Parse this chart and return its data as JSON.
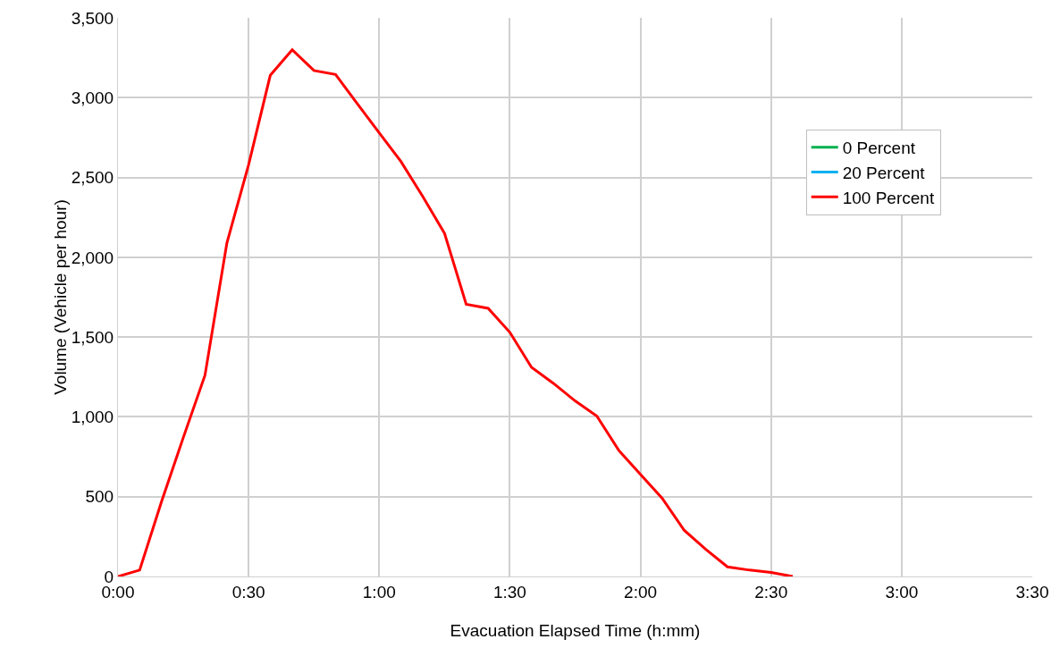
{
  "chart_data": {
    "type": "line",
    "xlabel": "Evacuation Elapsed Time (h:mm)",
    "ylabel": "Volume (Vehicle per hour)",
    "x": [
      0,
      0.083,
      0.167,
      0.25,
      0.333,
      0.417,
      0.5,
      0.583,
      0.667,
      0.75,
      0.833,
      0.917,
      1,
      1.083,
      1.167,
      1.25,
      1.333,
      1.417,
      1.5,
      1.583,
      1.667,
      1.75,
      1.833,
      1.917,
      2,
      2.083,
      2.167,
      2.25,
      2.333,
      2.417,
      2.5,
      2.583
    ],
    "series": [
      {
        "name": "0 Percent",
        "color": "#00b050",
        "values": [
          null,
          null,
          null,
          null,
          null,
          null,
          null,
          null,
          null,
          null,
          null,
          null,
          null,
          null,
          null,
          null,
          null,
          null,
          null,
          null,
          null,
          null,
          null,
          null,
          null,
          null,
          null,
          null,
          null,
          null,
          null,
          null
        ]
      },
      {
        "name": "20 Percent",
        "color": "#00b0f0",
        "values": [
          null,
          null,
          null,
          null,
          null,
          null,
          null,
          null,
          null,
          null,
          null,
          null,
          null,
          null,
          null,
          null,
          null,
          null,
          null,
          null,
          null,
          null,
          null,
          null,
          null,
          null,
          null,
          null,
          null,
          null,
          null,
          null
        ]
      },
      {
        "name": "100 Percent",
        "color": "#ff0000",
        "values": [
          0,
          40,
          470,
          870,
          1260,
          2090,
          2580,
          3140,
          3300,
          3170,
          3145,
          2960,
          2780,
          2600,
          2380,
          2150,
          1705,
          1680,
          1530,
          1310,
          1210,
          1100,
          1005,
          790,
          640,
          490,
          290,
          170,
          60,
          40,
          25,
          0
        ]
      }
    ],
    "xlim": [
      0,
      3.5
    ],
    "xticks": [
      {
        "value": 0,
        "label": "0:00"
      },
      {
        "value": 0.5,
        "label": "0:30"
      },
      {
        "value": 1,
        "label": "1:00"
      },
      {
        "value": 1.5,
        "label": "1:30"
      },
      {
        "value": 2,
        "label": "2:00"
      },
      {
        "value": 2.5,
        "label": "2:30"
      },
      {
        "value": 3,
        "label": "3:00"
      },
      {
        "value": 3.5,
        "label": "3:30"
      }
    ],
    "ylim": [
      0,
      3500
    ],
    "yticks": [
      {
        "value": 0,
        "label": "0"
      },
      {
        "value": 500,
        "label": "500"
      },
      {
        "value": 1000,
        "label": "1,000"
      },
      {
        "value": 1500,
        "label": "1,500"
      },
      {
        "value": 2000,
        "label": "2,000"
      },
      {
        "value": 2500,
        "label": "2,500"
      },
      {
        "value": 3000,
        "label": "3,000"
      },
      {
        "value": 3500,
        "label": "3,500"
      }
    ],
    "grid": true,
    "legend": "top right",
    "marker": "none",
    "line_style": "solid"
  }
}
